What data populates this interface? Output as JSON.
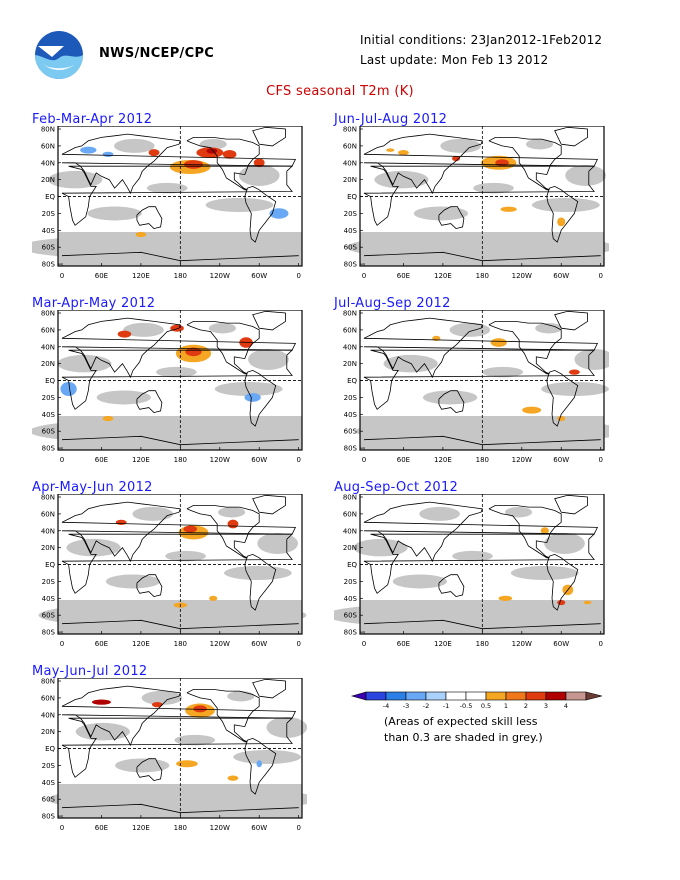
{
  "header": {
    "org": "NWS/NCEP/CPC",
    "initial_conditions": "Initial conditions: 23Jan2012-1Feb2012",
    "last_update": "Last update: Mon Feb 13 2012",
    "title": "CFS seasonal T2m (K)"
  },
  "axes": {
    "lat_labels": [
      "80N",
      "60N",
      "40N",
      "20N",
      "EQ",
      "20S",
      "40S",
      "60S",
      "80S"
    ],
    "lon_labels": [
      "0",
      "60E",
      "120E",
      "180",
      "120W",
      "60W",
      "0"
    ]
  },
  "panels": [
    {
      "title": "Feb-Mar-Apr 2012",
      "col": 0,
      "row": 0
    },
    {
      "title": "Jun-Jul-Aug 2012",
      "col": 1,
      "row": 0
    },
    {
      "title": "Mar-Apr-May 2012",
      "col": 0,
      "row": 1
    },
    {
      "title": "Jul-Aug-Sep 2012",
      "col": 1,
      "row": 1
    },
    {
      "title": "Apr-May-Jun 2012",
      "col": 0,
      "row": 2
    },
    {
      "title": "Aug-Sep-Oct 2012",
      "col": 1,
      "row": 2
    },
    {
      "title": "May-Jun-Jul 2012",
      "col": 0,
      "row": 3
    }
  ],
  "legend": {
    "colors": [
      "#3b00b3",
      "#2a44e0",
      "#2b7fe6",
      "#69a8f5",
      "#a9d1fb",
      "#ffffff",
      "#ffffff",
      "#f5a623",
      "#f07818",
      "#e03a10",
      "#b00000",
      "#c89690",
      "#6b3b34"
    ],
    "tick_labels": [
      "-4",
      "-3",
      "-2",
      "-1",
      "-0.5",
      "0.5",
      "1",
      "2",
      "3",
      "4"
    ],
    "note_line1": "(Areas of expected skill less",
    "note_line2": "than 0.3 are shaded in grey.)"
  }
}
